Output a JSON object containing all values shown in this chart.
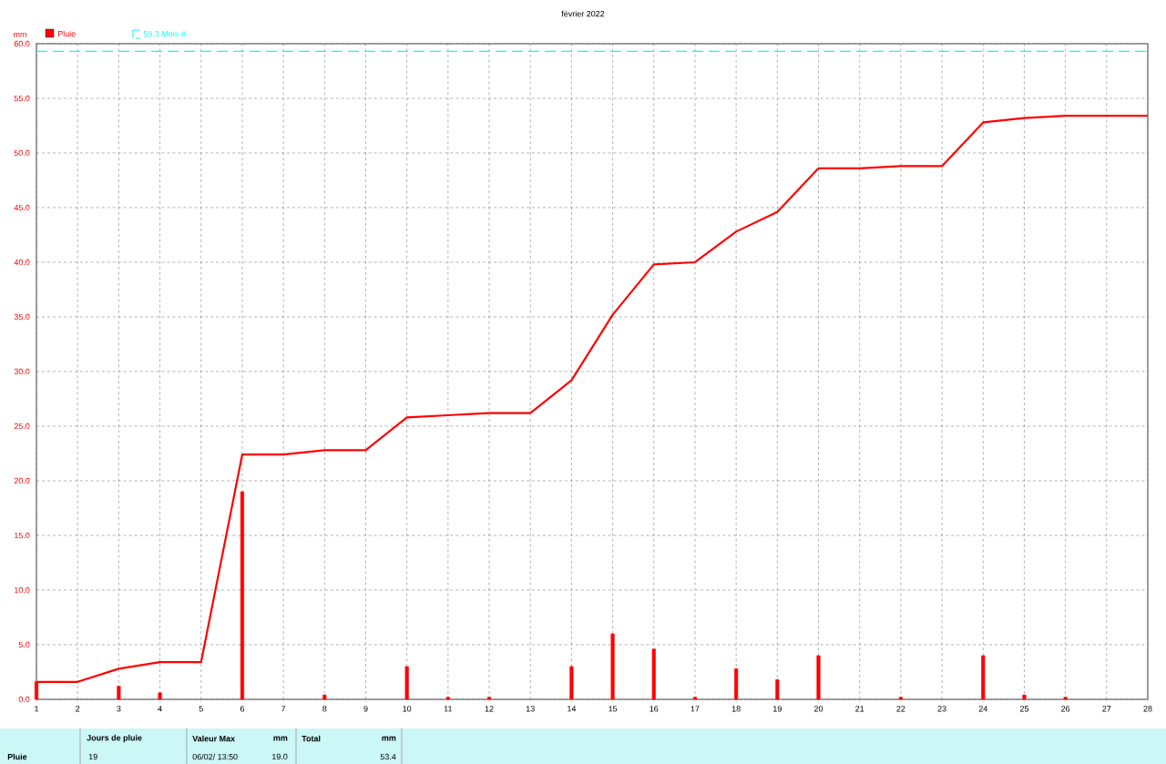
{
  "chart_data": {
    "type": "bar",
    "title": "février 2022",
    "ylabel": "mm",
    "x": [
      1,
      2,
      3,
      4,
      5,
      6,
      7,
      8,
      9,
      10,
      11,
      12,
      13,
      14,
      15,
      16,
      17,
      18,
      19,
      20,
      21,
      22,
      23,
      24,
      25,
      26,
      27,
      28
    ],
    "series": [
      {
        "name": "Pluie",
        "color": "#ff0000",
        "values": [
          1.6,
          null,
          1.2,
          0.6,
          null,
          19.0,
          null,
          0.4,
          null,
          3.0,
          0.2,
          0.2,
          null,
          3.0,
          6.0,
          4.6,
          0.2,
          2.8,
          1.8,
          4.0,
          null,
          0.2,
          null,
          4.0,
          0.4,
          0.2,
          null,
          null
        ]
      },
      {
        "type": "line",
        "color": "#ff0000",
        "values": [
          1.6,
          1.6,
          2.8,
          3.4,
          3.4,
          22.4,
          22.4,
          22.8,
          22.8,
          25.8,
          26.0,
          26.2,
          26.2,
          29.2,
          35.2,
          39.8,
          40.0,
          42.8,
          44.6,
          48.6,
          48.6,
          48.8,
          48.8,
          52.8,
          53.2,
          53.4,
          53.4,
          53.4
        ]
      }
    ],
    "xlim": [
      1,
      28
    ],
    "ylim": [
      0,
      60
    ],
    "xticks": [
      1,
      2,
      3,
      4,
      5,
      6,
      7,
      8,
      9,
      10,
      11,
      12,
      13,
      14,
      15,
      16,
      17,
      18,
      19,
      20,
      21,
      22,
      23,
      24,
      25,
      26,
      27,
      28
    ],
    "yticks": [
      {
        "value": 0,
        "label": "0.0"
      },
      {
        "value": 5,
        "label": "5.0"
      },
      {
        "value": 10,
        "label": "10.0"
      },
      {
        "value": 15,
        "label": "15.0"
      },
      {
        "value": 20,
        "label": "20.0"
      },
      {
        "value": 25,
        "label": "25.0"
      },
      {
        "value": 30,
        "label": "30.0"
      },
      {
        "value": 35,
        "label": "35.0"
      },
      {
        "value": 40,
        "label": "40.0"
      },
      {
        "value": 45,
        "label": "45.0"
      },
      {
        "value": 50,
        "label": "50.0"
      },
      {
        "value": 55,
        "label": "55.0"
      },
      {
        "value": 60,
        "label": "60.0"
      }
    ],
    "ref_lines": [
      {
        "axis": "y",
        "value": 59.3,
        "label": "59.3 Mois-#",
        "color": "#00ffff",
        "line_style": "dashed"
      }
    ],
    "grid": true,
    "legend": "top left",
    "annotations": [
      "Pluie",
      "Jours de pluie",
      "19",
      "Valeur Max",
      "mm",
      "06/02/  13:50",
      "19.0",
      "Total",
      "mm",
      "53.4"
    ]
  }
}
